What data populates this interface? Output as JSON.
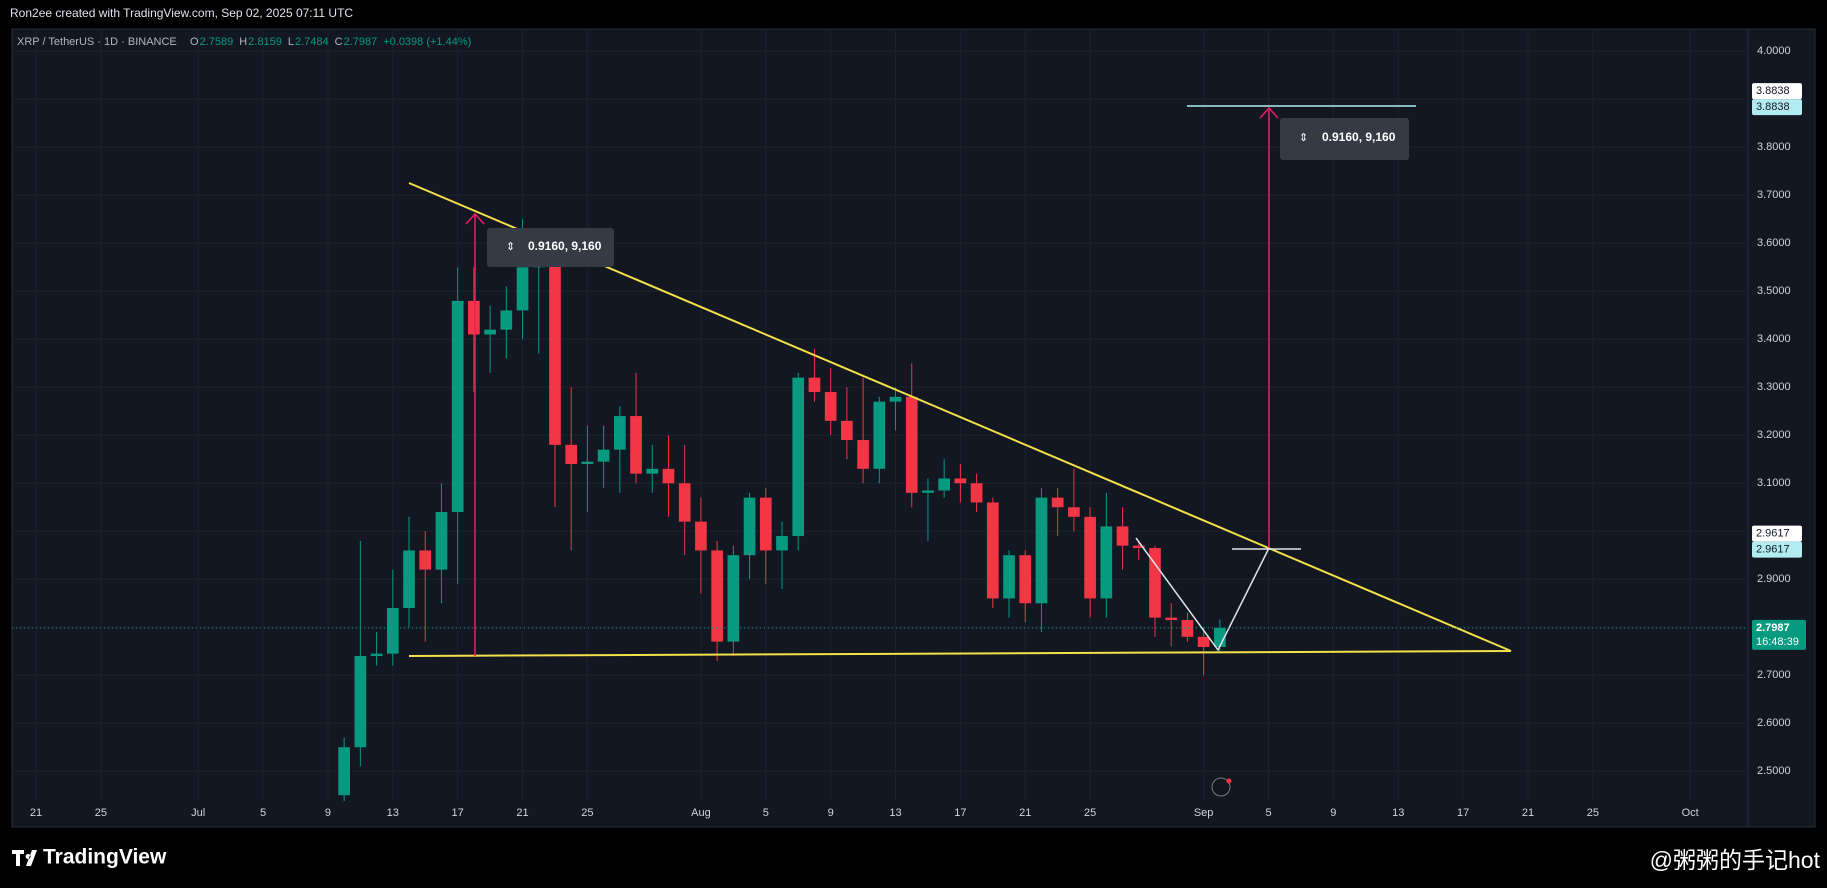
{
  "header": {
    "credit": "Ron2ee created with TradingView.com, Sep 02, 2025 07:11 UTC",
    "symbol": "XRP / TetherUS · 1D · BINANCE",
    "ohlc_labels": [
      "O",
      "H",
      "L",
      "C"
    ],
    "change": "+0.0398 (+1.44%)"
  },
  "chart_data": {
    "type": "candlestick",
    "x": [
      "Jul 10",
      "Jul 11",
      "Jul 12",
      "Jul 13",
      "Jul 14",
      "Jul 15",
      "Jul 16",
      "Jul 17",
      "Jul 18",
      "Jul 19",
      "Jul 20",
      "Jul 21",
      "Jul 22",
      "Jul 23",
      "Jul 24",
      "Jul 25",
      "Jul 26",
      "Jul 27",
      "Jul 28",
      "Jul 29",
      "Jul 30",
      "Jul 31",
      "Aug 1",
      "Aug 2",
      "Aug 3",
      "Aug 4",
      "Aug 5",
      "Aug 6",
      "Aug 7",
      "Aug 8",
      "Aug 9",
      "Aug 10",
      "Aug 11",
      "Aug 12",
      "Aug 13",
      "Aug 14",
      "Aug 15",
      "Aug 16",
      "Aug 17",
      "Aug 18",
      "Aug 19",
      "Aug 20",
      "Aug 21",
      "Aug 22",
      "Aug 23",
      "Aug 24",
      "Aug 25",
      "Aug 26",
      "Aug 27",
      "Aug 28",
      "Aug 29",
      "Aug 30",
      "Aug 31",
      "Sep 1",
      "Sep 2"
    ],
    "open": [
      2.45,
      2.55,
      2.74,
      2.745,
      2.84,
      2.96,
      2.92,
      3.04,
      3.48,
      3.41,
      3.42,
      3.46,
      3.55,
      3.57,
      3.18,
      3.14,
      3.145,
      3.17,
      3.24,
      3.12,
      3.13,
      3.1,
      3.02,
      2.96,
      2.77,
      2.95,
      3.07,
      2.96,
      2.99,
      3.32,
      3.29,
      3.23,
      3.19,
      3.13,
      3.27,
      3.28,
      3.08,
      3.085,
      3.11,
      3.1,
      3.06,
      2.86,
      2.95,
      2.85,
      3.07,
      3.05,
      3.03,
      2.86,
      3.01,
      2.97,
      2.965,
      2.82,
      2.815,
      2.78,
      2.7589
    ],
    "high": [
      2.57,
      2.98,
      2.79,
      2.92,
      3.03,
      3.0,
      3.1,
      3.55,
      3.55,
      3.47,
      3.51,
      3.65,
      3.62,
      3.59,
      3.3,
      3.22,
      3.22,
      3.26,
      3.33,
      3.18,
      3.2,
      3.18,
      3.07,
      2.98,
      2.97,
      3.08,
      3.09,
      3.02,
      3.33,
      3.38,
      3.34,
      3.3,
      3.32,
      3.28,
      3.3,
      3.35,
      3.11,
      3.15,
      3.14,
      3.12,
      3.07,
      2.96,
      2.96,
      3.09,
      3.09,
      3.13,
      3.05,
      3.08,
      3.05,
      2.98,
      2.97,
      2.85,
      2.83,
      2.8,
      2.8159
    ],
    "low": [
      2.4,
      2.51,
      2.72,
      2.72,
      2.8,
      2.77,
      2.85,
      2.89,
      3.29,
      3.33,
      3.36,
      3.4,
      3.37,
      3.05,
      2.96,
      3.04,
      3.09,
      3.08,
      3.1,
      3.08,
      3.03,
      2.95,
      2.87,
      2.73,
      2.74,
      2.9,
      2.89,
      2.88,
      2.96,
      3.27,
      3.2,
      3.15,
      3.1,
      3.1,
      3.21,
      3.05,
      2.98,
      3.07,
      3.06,
      3.04,
      2.84,
      2.82,
      2.81,
      2.79,
      2.99,
      3.0,
      2.82,
      2.82,
      2.92,
      2.94,
      2.78,
      2.76,
      2.77,
      2.7,
      2.7484
    ],
    "close": [
      2.55,
      2.74,
      2.745,
      2.84,
      2.96,
      2.92,
      3.04,
      3.48,
      3.41,
      3.42,
      3.46,
      3.55,
      3.57,
      3.18,
      3.14,
      3.145,
      3.17,
      3.24,
      3.12,
      3.13,
      3.1,
      3.02,
      2.96,
      2.77,
      2.95,
      3.07,
      2.96,
      2.99,
      3.32,
      3.29,
      3.23,
      3.19,
      3.13,
      3.27,
      3.28,
      3.08,
      3.085,
      3.11,
      3.1,
      3.06,
      2.86,
      2.95,
      2.85,
      3.07,
      3.05,
      3.03,
      2.86,
      3.01,
      2.97,
      2.965,
      2.82,
      2.815,
      2.78,
      2.7589,
      2.7987
    ],
    "up_color": "#089981",
    "down_color": "#f23645",
    "xlim": [
      "Jun 19",
      "Oct 5"
    ],
    "xticks": [
      {
        "value": "Jun 21",
        "label": "21"
      },
      {
        "value": "Jun 25",
        "label": "25"
      },
      {
        "value": "Jul 1",
        "label": "Jul"
      },
      {
        "value": "Jul 5",
        "label": "5"
      },
      {
        "value": "Jul 9",
        "label": "9"
      },
      {
        "value": "Jul 13",
        "label": "13"
      },
      {
        "value": "Jul 17",
        "label": "17"
      },
      {
        "value": "Jul 21",
        "label": "21"
      },
      {
        "value": "Jul 25",
        "label": "25"
      },
      {
        "value": "Aug 1",
        "label": "Aug"
      },
      {
        "value": "Aug 5",
        "label": "5"
      },
      {
        "value": "Aug 9",
        "label": "9"
      },
      {
        "value": "Aug 13",
        "label": "13"
      },
      {
        "value": "Aug 17",
        "label": "17"
      },
      {
        "value": "Aug 21",
        "label": "21"
      },
      {
        "value": "Aug 25",
        "label": "25"
      },
      {
        "value": "Sep 1",
        "label": "Sep"
      },
      {
        "value": "Sep 5",
        "label": "5"
      },
      {
        "value": "Sep 9",
        "label": "9"
      },
      {
        "value": "Sep 13",
        "label": "13"
      },
      {
        "value": "Sep 17",
        "label": "17"
      },
      {
        "value": "Sep 21",
        "label": "21"
      },
      {
        "value": "Sep 25",
        "label": "25"
      },
      {
        "value": "Oct 1",
        "label": "Oct"
      }
    ],
    "ylim": [
      2.44,
      4.04
    ],
    "yticks": [
      {
        "value": 2.5,
        "label": "2.5000"
      },
      {
        "value": 2.6,
        "label": "2.6000"
      },
      {
        "value": 2.7,
        "label": "2.7000"
      },
      {
        "value": 2.8,
        "label": "2.8000"
      },
      {
        "value": 2.9,
        "label": "2.9000"
      },
      {
        "value": 3.0,
        "label": "3.0000"
      },
      {
        "value": 3.1,
        "label": "3.1000"
      },
      {
        "value": 3.2,
        "label": "3.2000"
      },
      {
        "value": 3.3,
        "label": "3.3000"
      },
      {
        "value": 3.4,
        "label": "3.4000"
      },
      {
        "value": 3.5,
        "label": "3.5000"
      },
      {
        "value": 3.6,
        "label": "3.6000"
      },
      {
        "value": 3.7,
        "label": "3.7000"
      },
      {
        "value": 3.8,
        "label": "3.8000"
      },
      {
        "value": 3.9,
        "label": "3.9000"
      },
      {
        "value": 4.0,
        "label": "4.0000"
      }
    ],
    "grid": true,
    "price_labels": [
      {
        "value": 3.8838,
        "label": "3.8838"
      },
      {
        "value": 2.9617,
        "label": "2.9617"
      }
    ],
    "countdown": "16:48:39",
    "measures": [
      {
        "label": "0.9160, 9,160"
      },
      {
        "label": "0.9160, 9,160"
      }
    ]
  },
  "footer": {
    "logo": "TradingView",
    "watermark": "@粥粥的手记hot"
  }
}
